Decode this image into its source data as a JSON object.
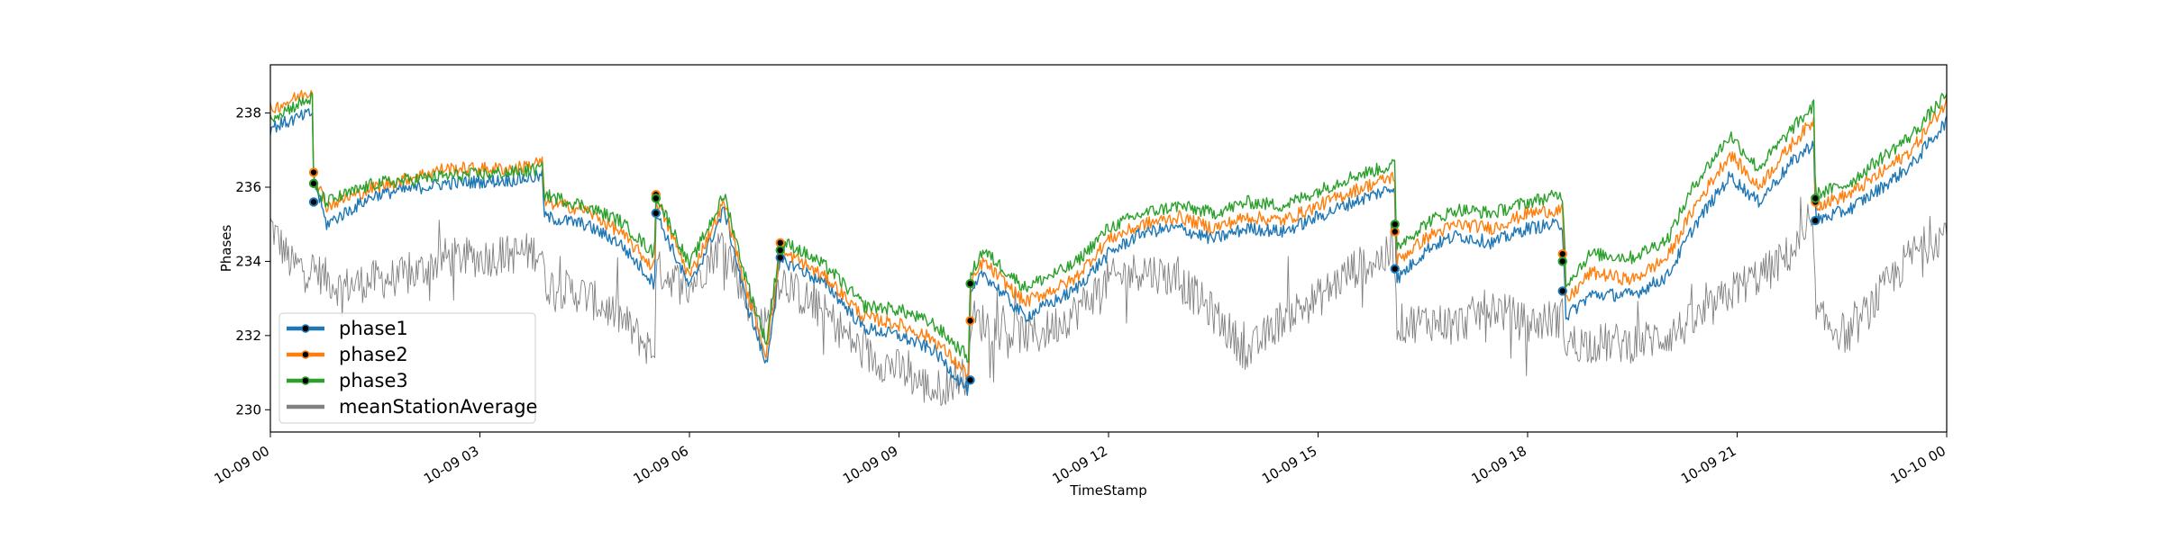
{
  "chart_data": {
    "type": "line",
    "xlabel": "TimeStamp",
    "ylabel": "Phases",
    "x_ticks": [
      "10-09 00",
      "10-09 03",
      "10-09 06",
      "10-09 09",
      "10-09 12",
      "10-09 15",
      "10-09 18",
      "10-09 21",
      "10-10 00"
    ],
    "y_ticks": [
      230,
      232,
      234,
      236,
      238
    ],
    "x_range_hours": [
      0,
      24
    ],
    "ylim": [
      229.4,
      239.3
    ],
    "grid": false,
    "legend_position": "lower-left",
    "series": [
      {
        "name": "phase1",
        "color": "#1f77b4",
        "points": [
          [
            0.0,
            237.6
          ],
          [
            0.6,
            238.0
          ],
          [
            0.62,
            236.3
          ],
          [
            0.8,
            235.0
          ],
          [
            1.5,
            235.8
          ],
          [
            2.5,
            236.1
          ],
          [
            3.5,
            236.2
          ],
          [
            3.9,
            236.3
          ],
          [
            3.92,
            235.2
          ],
          [
            4.5,
            235.0
          ],
          [
            5.0,
            234.5
          ],
          [
            5.5,
            233.4
          ],
          [
            5.52,
            235.3
          ],
          [
            6.0,
            233.3
          ],
          [
            6.5,
            235.4
          ],
          [
            6.8,
            233.0
          ],
          [
            7.1,
            231.2
          ],
          [
            7.3,
            234.0
          ],
          [
            7.5,
            233.9
          ],
          [
            8.0,
            233.3
          ],
          [
            8.5,
            232.2
          ],
          [
            9.0,
            232.0
          ],
          [
            9.5,
            231.6
          ],
          [
            10.0,
            230.5
          ],
          [
            10.02,
            233.0
          ],
          [
            10.2,
            233.7
          ],
          [
            10.8,
            232.5
          ],
          [
            11.5,
            233.2
          ],
          [
            12.0,
            234.2
          ],
          [
            12.5,
            234.8
          ],
          [
            13.0,
            234.9
          ],
          [
            13.5,
            234.6
          ],
          [
            14.0,
            234.9
          ],
          [
            14.5,
            234.8
          ],
          [
            15.0,
            235.2
          ],
          [
            15.5,
            235.6
          ],
          [
            16.1,
            236.0
          ],
          [
            16.12,
            233.5
          ],
          [
            16.6,
            234.4
          ],
          [
            17.0,
            234.7
          ],
          [
            17.5,
            234.5
          ],
          [
            18.0,
            234.9
          ],
          [
            18.5,
            235.0
          ],
          [
            18.55,
            232.5
          ],
          [
            18.9,
            233.1
          ],
          [
            19.5,
            233.1
          ],
          [
            20.0,
            233.6
          ],
          [
            20.4,
            235.0
          ],
          [
            20.9,
            236.3
          ],
          [
            21.3,
            235.6
          ],
          [
            21.8,
            236.7
          ],
          [
            22.1,
            237.2
          ],
          [
            22.12,
            235.1
          ],
          [
            22.6,
            235.4
          ],
          [
            23.0,
            235.9
          ],
          [
            23.5,
            236.6
          ],
          [
            24.0,
            237.8
          ]
        ]
      },
      {
        "name": "phase2",
        "color": "#ff7f0e",
        "points": [
          [
            0.0,
            238.1
          ],
          [
            0.6,
            238.6
          ],
          [
            0.62,
            236.4
          ],
          [
            0.8,
            235.5
          ],
          [
            1.5,
            236.0
          ],
          [
            2.5,
            236.5
          ],
          [
            3.5,
            236.5
          ],
          [
            3.9,
            236.7
          ],
          [
            3.92,
            235.6
          ],
          [
            4.5,
            235.4
          ],
          [
            5.0,
            234.8
          ],
          [
            5.5,
            233.8
          ],
          [
            5.52,
            235.7
          ],
          [
            6.0,
            233.6
          ],
          [
            6.5,
            235.6
          ],
          [
            6.8,
            233.3
          ],
          [
            7.1,
            231.5
          ],
          [
            7.3,
            234.2
          ],
          [
            7.5,
            234.1
          ],
          [
            8.0,
            233.5
          ],
          [
            8.5,
            232.5
          ],
          [
            9.0,
            232.3
          ],
          [
            9.5,
            231.9
          ],
          [
            10.0,
            230.9
          ],
          [
            10.02,
            233.3
          ],
          [
            10.2,
            234.0
          ],
          [
            10.8,
            232.9
          ],
          [
            11.5,
            233.5
          ],
          [
            12.0,
            234.6
          ],
          [
            12.5,
            235.0
          ],
          [
            13.0,
            235.2
          ],
          [
            13.5,
            234.9
          ],
          [
            14.0,
            235.2
          ],
          [
            14.5,
            235.1
          ],
          [
            15.0,
            235.5
          ],
          [
            15.5,
            235.9
          ],
          [
            16.1,
            236.3
          ],
          [
            16.12,
            234.0
          ],
          [
            16.6,
            234.7
          ],
          [
            17.0,
            235.0
          ],
          [
            17.5,
            234.9
          ],
          [
            18.0,
            235.3
          ],
          [
            18.5,
            235.4
          ],
          [
            18.55,
            232.9
          ],
          [
            18.9,
            233.7
          ],
          [
            19.5,
            233.5
          ],
          [
            20.0,
            234.1
          ],
          [
            20.4,
            235.5
          ],
          [
            20.9,
            236.9
          ],
          [
            21.3,
            236.0
          ],
          [
            21.8,
            237.2
          ],
          [
            22.1,
            237.8
          ],
          [
            22.12,
            235.5
          ],
          [
            22.6,
            235.8
          ],
          [
            23.0,
            236.3
          ],
          [
            23.5,
            237.0
          ],
          [
            24.0,
            238.3
          ]
        ]
      },
      {
        "name": "phase3",
        "color": "#2ca02c",
        "points": [
          [
            0.0,
            237.9
          ],
          [
            0.6,
            238.4
          ],
          [
            0.62,
            236.0
          ],
          [
            0.8,
            235.6
          ],
          [
            1.5,
            236.1
          ],
          [
            2.5,
            236.3
          ],
          [
            3.5,
            236.4
          ],
          [
            3.9,
            236.5
          ],
          [
            3.92,
            235.8
          ],
          [
            4.5,
            235.5
          ],
          [
            5.0,
            235.1
          ],
          [
            5.5,
            234.2
          ],
          [
            5.52,
            235.8
          ],
          [
            6.0,
            233.9
          ],
          [
            6.5,
            235.8
          ],
          [
            6.8,
            233.6
          ],
          [
            7.1,
            231.8
          ],
          [
            7.3,
            234.5
          ],
          [
            7.5,
            234.4
          ],
          [
            8.0,
            233.8
          ],
          [
            8.5,
            232.8
          ],
          [
            9.0,
            232.7
          ],
          [
            9.5,
            232.3
          ],
          [
            10.0,
            231.4
          ],
          [
            10.02,
            233.6
          ],
          [
            10.2,
            234.3
          ],
          [
            10.8,
            233.3
          ],
          [
            11.5,
            233.9
          ],
          [
            12.0,
            234.9
          ],
          [
            12.5,
            235.3
          ],
          [
            13.0,
            235.5
          ],
          [
            13.5,
            235.3
          ],
          [
            14.0,
            235.6
          ],
          [
            14.5,
            235.5
          ],
          [
            15.0,
            235.9
          ],
          [
            15.5,
            236.3
          ],
          [
            16.1,
            236.6
          ],
          [
            16.12,
            234.4
          ],
          [
            16.6,
            235.1
          ],
          [
            17.0,
            235.4
          ],
          [
            17.5,
            235.3
          ],
          [
            18.0,
            235.6
          ],
          [
            18.5,
            235.8
          ],
          [
            18.55,
            233.4
          ],
          [
            18.9,
            234.2
          ],
          [
            19.5,
            234.1
          ],
          [
            20.0,
            234.6
          ],
          [
            20.4,
            236.1
          ],
          [
            20.9,
            237.4
          ],
          [
            21.3,
            236.5
          ],
          [
            21.8,
            237.6
          ],
          [
            22.1,
            238.2
          ],
          [
            22.12,
            235.8
          ],
          [
            22.6,
            236.1
          ],
          [
            23.0,
            236.7
          ],
          [
            23.5,
            237.4
          ],
          [
            24.0,
            238.5
          ]
        ]
      },
      {
        "name": "meanStationAverage",
        "color": "#808080",
        "points": [
          [
            0.0,
            235.0
          ],
          [
            0.3,
            233.9
          ],
          [
            0.6,
            233.8
          ],
          [
            1.0,
            233.3
          ],
          [
            1.5,
            233.5
          ],
          [
            2.0,
            233.6
          ],
          [
            2.5,
            234.1
          ],
          [
            3.0,
            234.1
          ],
          [
            3.5,
            234.2
          ],
          [
            3.9,
            234.3
          ],
          [
            3.92,
            233.4
          ],
          [
            4.5,
            233.1
          ],
          [
            5.0,
            232.5
          ],
          [
            5.5,
            231.5
          ],
          [
            5.52,
            233.8
          ],
          [
            6.0,
            233.3
          ],
          [
            6.5,
            234.6
          ],
          [
            6.8,
            233.0
          ],
          [
            7.1,
            232.2
          ],
          [
            7.3,
            233.6
          ],
          [
            7.5,
            233.2
          ],
          [
            8.0,
            232.5
          ],
          [
            8.5,
            231.5
          ],
          [
            9.0,
            231.1
          ],
          [
            9.5,
            230.5
          ],
          [
            10.0,
            231.0
          ],
          [
            10.02,
            232.5
          ],
          [
            10.5,
            232.1
          ],
          [
            11.0,
            232.0
          ],
          [
            11.5,
            232.6
          ],
          [
            12.0,
            233.5
          ],
          [
            12.5,
            233.8
          ],
          [
            13.0,
            233.5
          ],
          [
            13.5,
            232.6
          ],
          [
            14.0,
            231.5
          ],
          [
            14.5,
            232.5
          ],
          [
            15.0,
            233.0
          ],
          [
            15.5,
            233.8
          ],
          [
            16.1,
            234.2
          ],
          [
            16.12,
            232.3
          ],
          [
            16.6,
            232.4
          ],
          [
            17.0,
            232.3
          ],
          [
            17.5,
            232.8
          ],
          [
            18.0,
            232.3
          ],
          [
            18.5,
            232.5
          ],
          [
            18.55,
            231.8
          ],
          [
            19.0,
            231.8
          ],
          [
            19.5,
            231.8
          ],
          [
            20.0,
            232.0
          ],
          [
            20.5,
            232.5
          ],
          [
            21.0,
            233.3
          ],
          [
            21.5,
            233.8
          ],
          [
            22.1,
            234.8
          ],
          [
            22.12,
            232.5
          ],
          [
            22.6,
            232.0
          ],
          [
            23.0,
            233.0
          ],
          [
            23.5,
            234.2
          ],
          [
            24.0,
            234.8
          ]
        ]
      }
    ],
    "markers": [
      {
        "x": 0.62,
        "series": [
          "phase1",
          "phase2",
          "phase3"
        ],
        "y": [
          235.6,
          236.4,
          236.1
        ]
      },
      {
        "x": 5.52,
        "series": [
          "phase1",
          "phase2",
          "phase3"
        ],
        "y": [
          235.3,
          235.8,
          235.7
        ]
      },
      {
        "x": 7.3,
        "series": [
          "phase1",
          "phase2",
          "phase3"
        ],
        "y": [
          234.1,
          234.5,
          234.3
        ]
      },
      {
        "x": 10.02,
        "series": [
          "phase1",
          "phase2",
          "phase3"
        ],
        "y": [
          230.8,
          232.4,
          233.4
        ]
      },
      {
        "x": 16.1,
        "series": [
          "phase1",
          "phase2",
          "phase3"
        ],
        "y": [
          233.8,
          234.8,
          235.0
        ]
      },
      {
        "x": 18.5,
        "series": [
          "phase1",
          "phase2",
          "phase3"
        ],
        "y": [
          233.2,
          234.2,
          234.0
        ]
      },
      {
        "x": 22.12,
        "series": [
          "phase1",
          "phase2",
          "phase3"
        ],
        "y": [
          235.1,
          235.6,
          235.7
        ]
      }
    ]
  }
}
